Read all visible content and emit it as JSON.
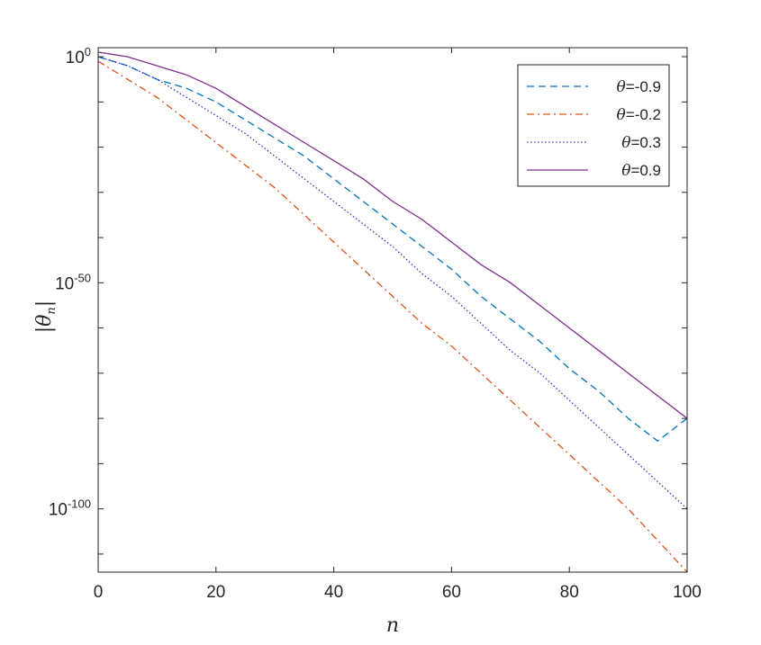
{
  "chart_data": {
    "type": "line",
    "xlabel": "n",
    "ylabel": "|θ_n|",
    "ylabel_parts": {
      "bar_left": "|",
      "symbol": "θ",
      "subscript": "n",
      "bar_right": "|"
    },
    "xlim": [
      0,
      100
    ],
    "ylim_exponent": [
      -114,
      2
    ],
    "yscale": "log",
    "x_ticks": [
      "0",
      "20",
      "40",
      "60",
      "80",
      "100"
    ],
    "y_ticks": [
      {
        "base": "10",
        "exp": "0",
        "value": 0
      },
      {
        "base": "10",
        "exp": "-50",
        "value": -50
      },
      {
        "base": "10",
        "exp": "-100",
        "value": -100
      }
    ],
    "grid": false,
    "legend_position": "top-right",
    "series": [
      {
        "name": "θ=-0.9",
        "legend_symbol": "θ",
        "legend_value": "=-0.9",
        "color": "#0072BD",
        "style": "dashed",
        "x": [
          0,
          5,
          10,
          15,
          20,
          25,
          30,
          35,
          40,
          45,
          50,
          55,
          60,
          65,
          70,
          75,
          80,
          85,
          90,
          95,
          100
        ],
        "log10_y": [
          0,
          -2,
          -5,
          -7,
          -10,
          -14,
          -18,
          -22,
          -27,
          -32,
          -37,
          -42,
          -47,
          -53,
          -58,
          -63,
          -69,
          -74,
          -80,
          -85,
          -80
        ]
      },
      {
        "name": "θ=-0.2",
        "legend_symbol": "θ",
        "legend_value": "=-0.2",
        "color": "#D95319",
        "style": "dashdot",
        "x": [
          0,
          5,
          10,
          15,
          20,
          25,
          30,
          35,
          40,
          45,
          50,
          55,
          60,
          65,
          70,
          75,
          80,
          85,
          90,
          95,
          100
        ],
        "log10_y": [
          -1,
          -5,
          -9,
          -14,
          -19,
          -24,
          -29,
          -35,
          -41,
          -47,
          -53,
          -59,
          -64,
          -70,
          -76,
          -82,
          -88,
          -94,
          -100,
          -107,
          -114
        ]
      },
      {
        "name": "θ=0.3",
        "legend_symbol": "θ",
        "legend_value": "=0.3",
        "color": "#3030C8",
        "style": "dotted",
        "x": [
          0,
          5,
          10,
          15,
          20,
          25,
          30,
          35,
          40,
          45,
          50,
          55,
          60,
          65,
          70,
          75,
          80,
          85,
          90,
          95,
          100
        ],
        "log10_y": [
          0,
          -2,
          -5,
          -9,
          -13,
          -17,
          -22,
          -27,
          -32,
          -37,
          -42,
          -48,
          -53,
          -59,
          -65,
          -70,
          -76,
          -82,
          -88,
          -94,
          -100
        ]
      },
      {
        "name": "θ=0.9",
        "legend_symbol": "θ",
        "legend_value": "=0.9",
        "color": "#7E2F8E",
        "style": "solid",
        "x": [
          0,
          5,
          10,
          15,
          20,
          25,
          30,
          35,
          40,
          45,
          50,
          55,
          60,
          65,
          70,
          75,
          80,
          85,
          90,
          95,
          100
        ],
        "log10_y": [
          1,
          0,
          -2,
          -4,
          -7,
          -11,
          -15,
          -19,
          -23,
          -27,
          -32,
          -36,
          -41,
          -46,
          -50,
          -55,
          -60,
          -65,
          -70,
          -75,
          -80
        ]
      }
    ]
  }
}
